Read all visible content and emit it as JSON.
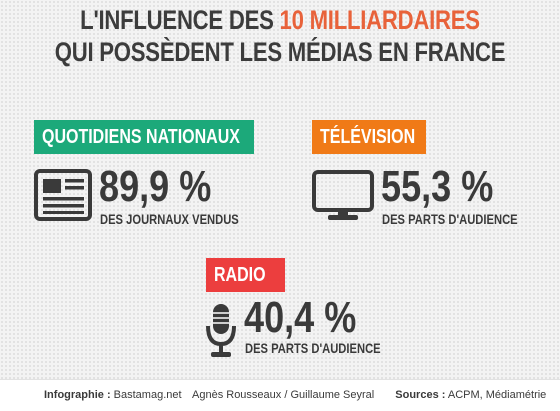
{
  "title": {
    "line1_before": "L'INFLUENCE DES ",
    "line1_highlight": "10 MILLIARDAIRES",
    "line2": "QUI POSSÈDENT LES MÉDIAS EN FRANCE"
  },
  "colors": {
    "title_highlight": "#e8623a",
    "quotidiens": "#1ca97a",
    "television": "#f07a17",
    "radio": "#ec3e3e",
    "text": "#3a3a3a"
  },
  "sections": {
    "quotidiens": {
      "label": "QUOTIDIENS NATIONAUX",
      "value": "89,9 %",
      "caption": "DES JOURNAUX VENDUS",
      "icon": "newspaper-icon"
    },
    "television": {
      "label": "TÉLÉVISION",
      "value": "55,3 %",
      "caption": "DES PARTS D'AUDIENCE",
      "icon": "tv-icon"
    },
    "radio": {
      "label": "RADIO",
      "value": "40,4 %",
      "caption": "DES PARTS D'AUDIENCE",
      "icon": "microphone-icon"
    }
  },
  "footer": {
    "infographie_label": "Infographie :",
    "infographie_source": "Bastamag.net",
    "authors": "Agnès Rousseaux / Guillaume Seyral",
    "sources_label": "Sources :",
    "sources": "ACPM, Médiamétrie"
  }
}
